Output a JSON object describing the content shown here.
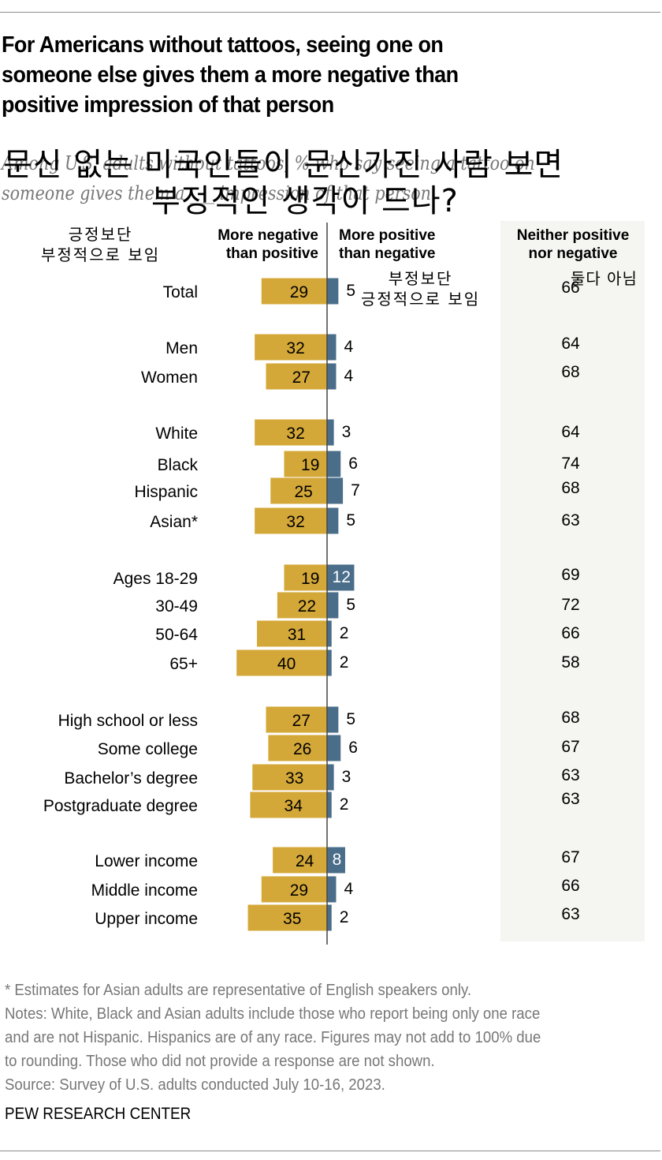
{
  "title_lines": [
    "For Americans without tattoos, seeing one on",
    "someone else gives them a more negative than",
    "positive impression of that person"
  ],
  "subtitle_lines": [
    "Among U.S. adults without tattoos, % who say seeing a tattoo on",
    "someone gives them a ___ impression of that person"
  ],
  "korean_overlay": {
    "title_line1": "문신 없는 미국인들이 문신가진 사람 보면",
    "title_line2": "부정적인 생각이 드나?",
    "negative_label_line1": "긍정보단",
    "negative_label_line2": "부정적으로 보임",
    "positive_label_line1": "부정보단",
    "positive_label_line2": "긍정적으로 보임",
    "neither_label": "둘다 아님"
  },
  "colors": {
    "negative": "#d4a838",
    "positive": "#4a6d8a",
    "neither_panel": "#f5f5f1",
    "axis": "#444444",
    "note_text": "#777777"
  },
  "chart_data": {
    "type": "bar",
    "orientation": "horizontal-diverging",
    "title": "For Americans without tattoos, seeing one on someone else gives them a more negative than positive impression of that person",
    "subtitle": "Among U.S. adults without tattoos, % who say seeing a tattoo on someone gives them a ___ impression of that person",
    "unit": "%",
    "column_headers": {
      "negative": [
        "More negative",
        "than positive"
      ],
      "positive": [
        "More positive",
        "than negative"
      ],
      "neither": [
        "Neither positive",
        "nor negative"
      ]
    },
    "categories": [
      "Total",
      "Men",
      "Women",
      "White",
      "Black",
      "Hispanic",
      "Asian*",
      "Ages 18-29",
      "30-49",
      "50-64",
      "65+",
      "High school or less",
      "Some college",
      "Bachelor’s degree",
      "Postgraduate degree",
      "Lower income",
      "Middle income",
      "Upper income"
    ],
    "groups": [
      [
        "Total"
      ],
      [
        "Men",
        "Women"
      ],
      [
        "White",
        "Black",
        "Hispanic",
        "Asian*"
      ],
      [
        "Ages 18-29",
        "30-49",
        "50-64",
        "65+"
      ],
      [
        "High school or less",
        "Some college",
        "Bachelor’s degree",
        "Postgraduate degree"
      ],
      [
        "Lower income",
        "Middle income",
        "Upper income"
      ]
    ],
    "series": [
      {
        "name": "More negative than positive",
        "key": "negative",
        "values": [
          29,
          32,
          27,
          32,
          19,
          25,
          32,
          19,
          22,
          31,
          40,
          27,
          26,
          33,
          34,
          24,
          29,
          35
        ]
      },
      {
        "name": "More positive than negative",
        "key": "positive",
        "values": [
          5,
          4,
          4,
          3,
          6,
          7,
          5,
          12,
          5,
          2,
          2,
          5,
          6,
          3,
          2,
          8,
          4,
          2
        ]
      },
      {
        "name": "Neither positive nor negative",
        "key": "neither",
        "values": [
          66,
          64,
          68,
          64,
          74,
          68,
          63,
          69,
          72,
          66,
          58,
          68,
          67,
          63,
          63,
          67,
          66,
          63
        ]
      }
    ],
    "positive_label_inside": [
      false,
      false,
      false,
      false,
      false,
      false,
      false,
      true,
      false,
      false,
      false,
      false,
      false,
      false,
      false,
      true,
      false,
      false
    ],
    "grid": false,
    "legend": "column-headers-top"
  },
  "notes": {
    "asterisk": "* Estimates for Asian adults are representative of English speakers only.",
    "notes_lines": [
      "Notes: White, Black and Asian adults include those who report being only one race",
      "and are not Hispanic. Hispanics are of any race. Figures may not add to 100% due",
      "to rounding. Those who did not provide a response are not shown."
    ],
    "source": "Source: Survey of U.S. adults conducted July 10-16, 2023."
  },
  "brand": "PEW RESEARCH CENTER"
}
